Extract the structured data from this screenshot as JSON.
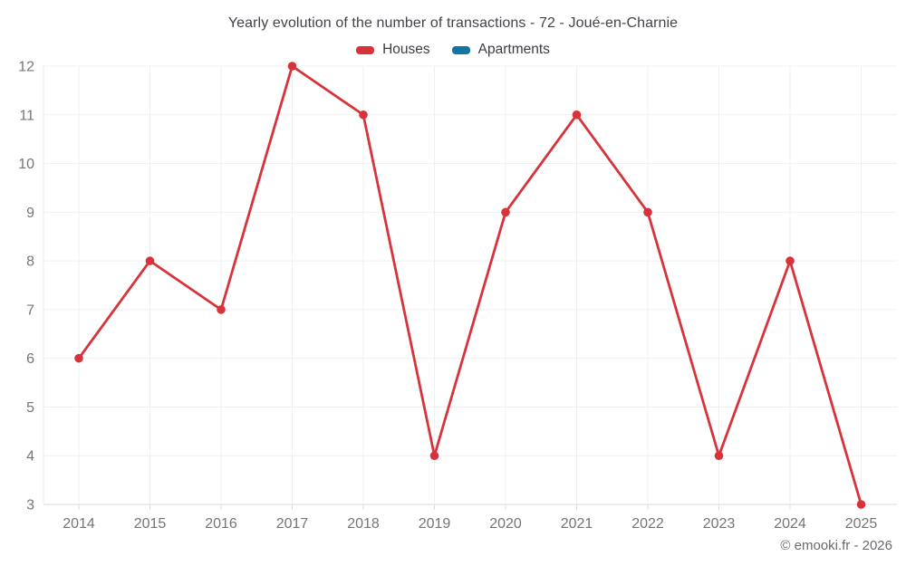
{
  "title": "Yearly evolution of the number of transactions - 72 - Joué-en-Charnie",
  "legend": {
    "items": [
      {
        "label": "Houses",
        "color": "#d8333a"
      },
      {
        "label": "Apartments",
        "color": "#1474a4"
      }
    ]
  },
  "footer": "© emooki.fr - 2026",
  "colors": {
    "houses_series": "#d8333a",
    "apartments_series": "#1474a4",
    "axis_text": "#757575",
    "gridline": "#f0f0f0",
    "axis_line": "#d9d9d9"
  },
  "chart_data": {
    "type": "line",
    "title": "Yearly evolution of the number of transactions - 72 - Joué-en-Charnie",
    "categories": [
      "2014",
      "2015",
      "2016",
      "2017",
      "2018",
      "2019",
      "2020",
      "2021",
      "2022",
      "2023",
      "2024",
      "2025"
    ],
    "series": [
      {
        "name": "Houses",
        "color": "#d8333a",
        "values": [
          6,
          8,
          7,
          12,
          11,
          4,
          9,
          11,
          9,
          4,
          8,
          3
        ]
      },
      {
        "name": "Apartments",
        "color": "#1474a4",
        "values": []
      }
    ],
    "xlabel": "",
    "ylabel": "",
    "ylim": [
      3,
      12
    ],
    "yticks": [
      3,
      4,
      5,
      6,
      7,
      8,
      9,
      10,
      11,
      12
    ],
    "grid": true,
    "legend_position": "top",
    "markers": true
  }
}
